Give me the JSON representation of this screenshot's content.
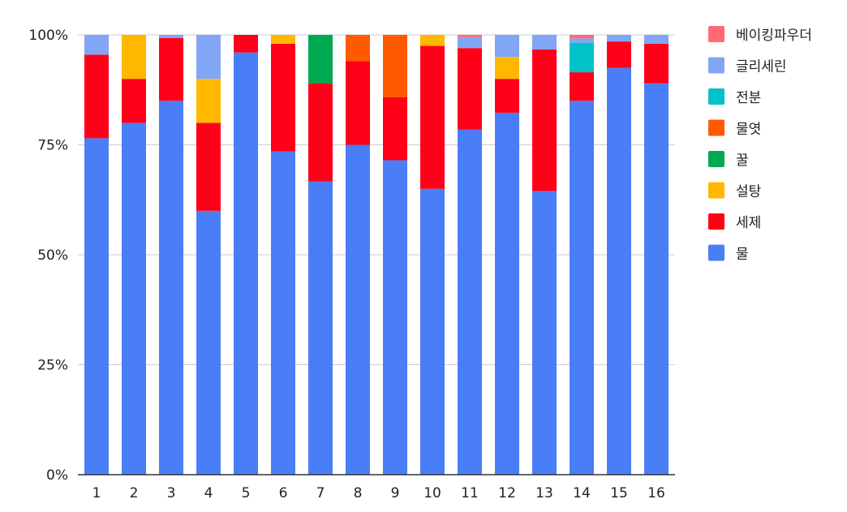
{
  "chart_data": {
    "type": "bar",
    "stacked": "percent",
    "title": "",
    "xlabel": "",
    "ylabel": "",
    "ylim": [
      0,
      100
    ],
    "y_ticks": [
      "0%",
      "25%",
      "50%",
      "75%",
      "100%"
    ],
    "y_tick_values": [
      0,
      25,
      50,
      75,
      100
    ],
    "grid": true,
    "legend_position": "right",
    "categories": [
      "1",
      "2",
      "3",
      "4",
      "5",
      "6",
      "7",
      "8",
      "9",
      "10",
      "11",
      "12",
      "13",
      "14",
      "15",
      "16"
    ],
    "series": [
      {
        "name": "물",
        "color": "#4a7ef6",
        "values": [
          76.5,
          80,
          85,
          60,
          96,
          73.5,
          66.7,
          75,
          71.5,
          65,
          78.5,
          82.3,
          64.5,
          85,
          92.5,
          89
        ]
      },
      {
        "name": "세제",
        "color": "#ff0018",
        "values": [
          19,
          10,
          14.3,
          20,
          4,
          24.5,
          22.3,
          19,
          14.3,
          32.5,
          18.5,
          7.7,
          32.2,
          6.5,
          6,
          9
        ]
      },
      {
        "name": "설탕",
        "color": "#ffb700",
        "values": [
          0,
          10,
          0,
          10,
          0,
          2,
          0,
          0,
          0,
          2.5,
          0,
          5,
          0,
          0,
          0,
          0
        ]
      },
      {
        "name": "꿀",
        "color": "#00a94f",
        "values": [
          0,
          0,
          0,
          0,
          0,
          0,
          11,
          0,
          0,
          0,
          0,
          0,
          0,
          0,
          0,
          0
        ]
      },
      {
        "name": "물엿",
        "color": "#ff5a00",
        "values": [
          0,
          0,
          0,
          0,
          0,
          0,
          0,
          6,
          14.2,
          0,
          0,
          0,
          0,
          0,
          0,
          0
        ]
      },
      {
        "name": "전분",
        "color": "#00c2c8",
        "values": [
          0,
          0,
          0,
          0,
          0,
          0,
          0,
          0,
          0,
          0,
          0,
          0,
          0,
          6.7,
          0,
          0
        ]
      },
      {
        "name": "글리세린",
        "color": "#80a6f5",
        "values": [
          4.5,
          0,
          0.7,
          10,
          0,
          0,
          0,
          0,
          0,
          0,
          2.5,
          5,
          3.3,
          1,
          1.5,
          2
        ]
      },
      {
        "name": "베이킹파우더",
        "color": "#ff6b72",
        "values": [
          0,
          0,
          0,
          0,
          0,
          0,
          0,
          0,
          0,
          0,
          0.5,
          0,
          0,
          0.8,
          0,
          0
        ]
      }
    ]
  }
}
